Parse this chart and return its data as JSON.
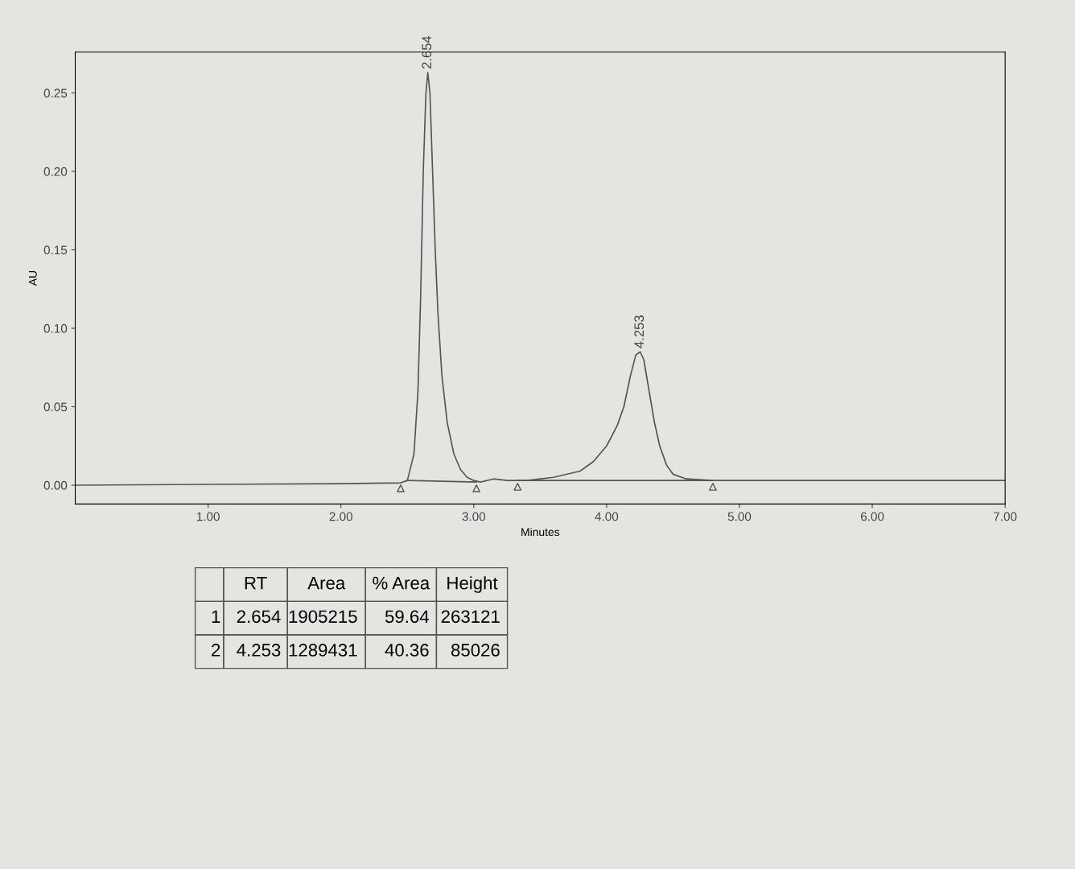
{
  "chart_data": [
    {
      "type": "line",
      "xlabel": "Minutes",
      "ylabel": "AU",
      "xlim": [
        0,
        7
      ],
      "ylim": [
        -0.012,
        0.276
      ],
      "xticks": [
        {
          "value": 1,
          "label": "1.00"
        },
        {
          "value": 2,
          "label": "2.00"
        },
        {
          "value": 3,
          "label": "3.00"
        },
        {
          "value": 4,
          "label": "4.00"
        },
        {
          "value": 5,
          "label": "5.00"
        },
        {
          "value": 6,
          "label": "6.00"
        },
        {
          "value": 7,
          "label": "7.00"
        }
      ],
      "yticks": [
        {
          "value": 0,
          "label": "0.00"
        },
        {
          "value": 0.05,
          "label": "0.05"
        },
        {
          "value": 0.1,
          "label": "0.10"
        },
        {
          "value": 0.15,
          "label": "0.15"
        },
        {
          "value": 0.2,
          "label": "0.20"
        },
        {
          "value": 0.25,
          "label": "0.25"
        }
      ],
      "grid": false,
      "legend": false,
      "series": [
        {
          "type": "line",
          "color": "#555555",
          "x": [
            0,
            1,
            2,
            2.45,
            2.5,
            2.55,
            2.58,
            2.6,
            2.62,
            2.64,
            2.654,
            2.67,
            2.69,
            2.71,
            2.73,
            2.76,
            2.8,
            2.85,
            2.9,
            2.95,
            3.0,
            3.05,
            3.15,
            3.25,
            3.4,
            3.6,
            3.8,
            3.9,
            4.0,
            4.08,
            4.13,
            4.18,
            4.22,
            4.253,
            4.28,
            4.32,
            4.36,
            4.4,
            4.45,
            4.5,
            4.6,
            4.8,
            5.5,
            6.5,
            7
          ],
          "values": [
            0,
            0.0005,
            0.001,
            0.0015,
            0.003,
            0.02,
            0.06,
            0.12,
            0.2,
            0.25,
            0.263,
            0.25,
            0.2,
            0.15,
            0.11,
            0.07,
            0.04,
            0.02,
            0.01,
            0.005,
            0.003,
            0.002,
            0.004,
            0.003,
            0.003,
            0.005,
            0.009,
            0.015,
            0.025,
            0.038,
            0.05,
            0.07,
            0.083,
            0.085,
            0.08,
            0.06,
            0.04,
            0.025,
            0.013,
            0.007,
            0.004,
            0.003,
            0.003,
            0.003,
            0.003
          ]
        },
        {
          "type": "line",
          "color": "#555555",
          "x": [
            2.5,
            3.02
          ],
          "values": [
            0.003,
            0.002
          ]
        },
        {
          "type": "line",
          "color": "#555555",
          "x": [
            3.33,
            4.8
          ],
          "values": [
            0.003,
            0.003
          ]
        },
        {
          "type": "scatter",
          "color": "#555555",
          "marker": "triangle",
          "x": [
            2.45,
            3.02,
            3.33,
            4.8
          ],
          "values": [
            -0.002,
            -0.002,
            -0.001,
            -0.001
          ]
        }
      ],
      "annotations": [
        {
          "text": "2.654",
          "x": 2.654,
          "y": 0.263
        },
        {
          "text": "4.253",
          "x": 4.253,
          "y": 0.085
        }
      ]
    },
    {
      "type": "other",
      "categories": [
        "RT",
        "Area",
        "% Area",
        "Height"
      ],
      "y_categories": [
        "1",
        "2"
      ],
      "cell_labels": [
        [
          "2.654",
          "1905215",
          "59.64",
          "263121"
        ],
        [
          "4.253",
          "1289431",
          "40.36",
          "85026"
        ]
      ]
    }
  ]
}
